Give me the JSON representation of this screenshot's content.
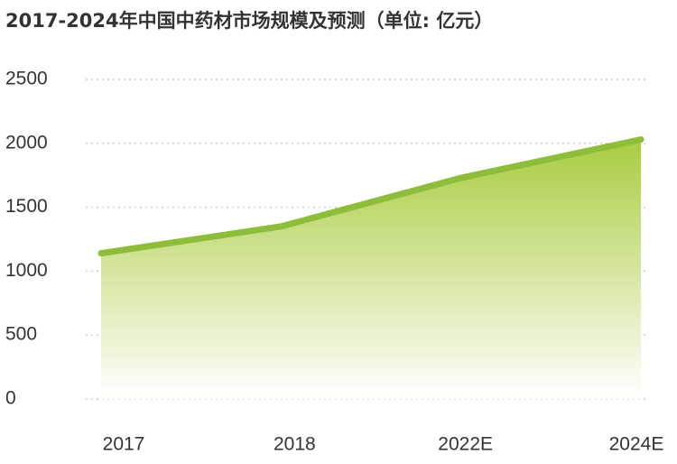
{
  "chart_data": {
    "type": "area",
    "title": "2017-2024年中国中药材市场规模及预测（单位: 亿元）",
    "categories": [
      "2017",
      "2018",
      "2022E",
      "2024E"
    ],
    "values": [
      1140,
      1350,
      1730,
      2030
    ],
    "color": "#8dbd3a",
    "ylim": [
      0,
      2500
    ],
    "yticks": [
      0,
      500,
      1000,
      1500,
      2000,
      2500
    ],
    "grid": true
  }
}
